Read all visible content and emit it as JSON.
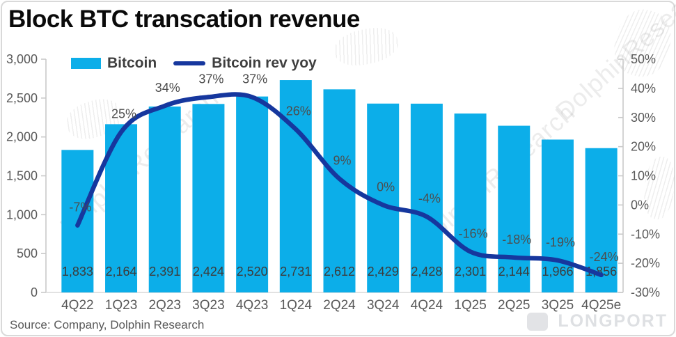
{
  "chart": {
    "title": "Block BTC transcation revenue",
    "source": "Source: Company, Dolphin Research",
    "legend": [
      {
        "label": "Bitcoin",
        "type": "bar"
      },
      {
        "label": "Bitcoin rev yoy",
        "type": "line"
      }
    ],
    "watermarks": {
      "diagonal": "DolphinResearch",
      "corner": "LONGPORT"
    },
    "colors": {
      "bar": "#0caee9",
      "line": "#16379e",
      "axis": "#c9c9c9",
      "tick_text": "#595959",
      "bar_label": "#3c3c3c",
      "yoy_label": "#4d4d4d",
      "category_text": "#595959"
    }
  },
  "chart_data": {
    "type": "bar+line",
    "title": "Block BTC transcation revenue",
    "categories": [
      "4Q22",
      "1Q23",
      "2Q23",
      "3Q23",
      "4Q23",
      "1Q24",
      "2Q24",
      "3Q24",
      "4Q24",
      "1Q25",
      "2Q25",
      "3Q25",
      "4Q25e"
    ],
    "series": [
      {
        "name": "Bitcoin",
        "type": "bar",
        "axis": "left",
        "values": [
          1833,
          2164,
          2391,
          2424,
          2520,
          2731,
          2612,
          2429,
          2428,
          2301,
          2144,
          1966,
          1856
        ],
        "labels": [
          "1,833",
          "2,164",
          "2,391",
          "2,424",
          "2,520",
          "2,731",
          "2,612",
          "2,429",
          "2,428",
          "2,301",
          "2,144",
          "1,966",
          "1,856"
        ]
      },
      {
        "name": "Bitcoin rev yoy",
        "type": "line",
        "axis": "right",
        "values": [
          -7,
          25,
          34,
          37,
          37,
          26,
          9,
          0,
          -4,
          -16,
          -18,
          -19,
          -24
        ],
        "labels": [
          "-7%",
          "25%",
          "34%",
          "37%",
          "37%",
          "26%",
          "9%",
          "0%",
          "-4%",
          "-16%",
          "-18%",
          "-19%",
          "-24%"
        ]
      }
    ],
    "left_axis": {
      "min": 0,
      "max": 3000,
      "step": 500,
      "ticks": [
        "3,000",
        "2,500",
        "2,000",
        "1,500",
        "1,000",
        "500",
        "0"
      ]
    },
    "right_axis": {
      "min": -30,
      "max": 50,
      "step": 10,
      "ticks": [
        "50%",
        "40%",
        "30%",
        "20%",
        "10%",
        "0%",
        "-10%",
        "-20%",
        "-30%"
      ]
    },
    "grid": false,
    "legend_position": "top-left-inside"
  }
}
